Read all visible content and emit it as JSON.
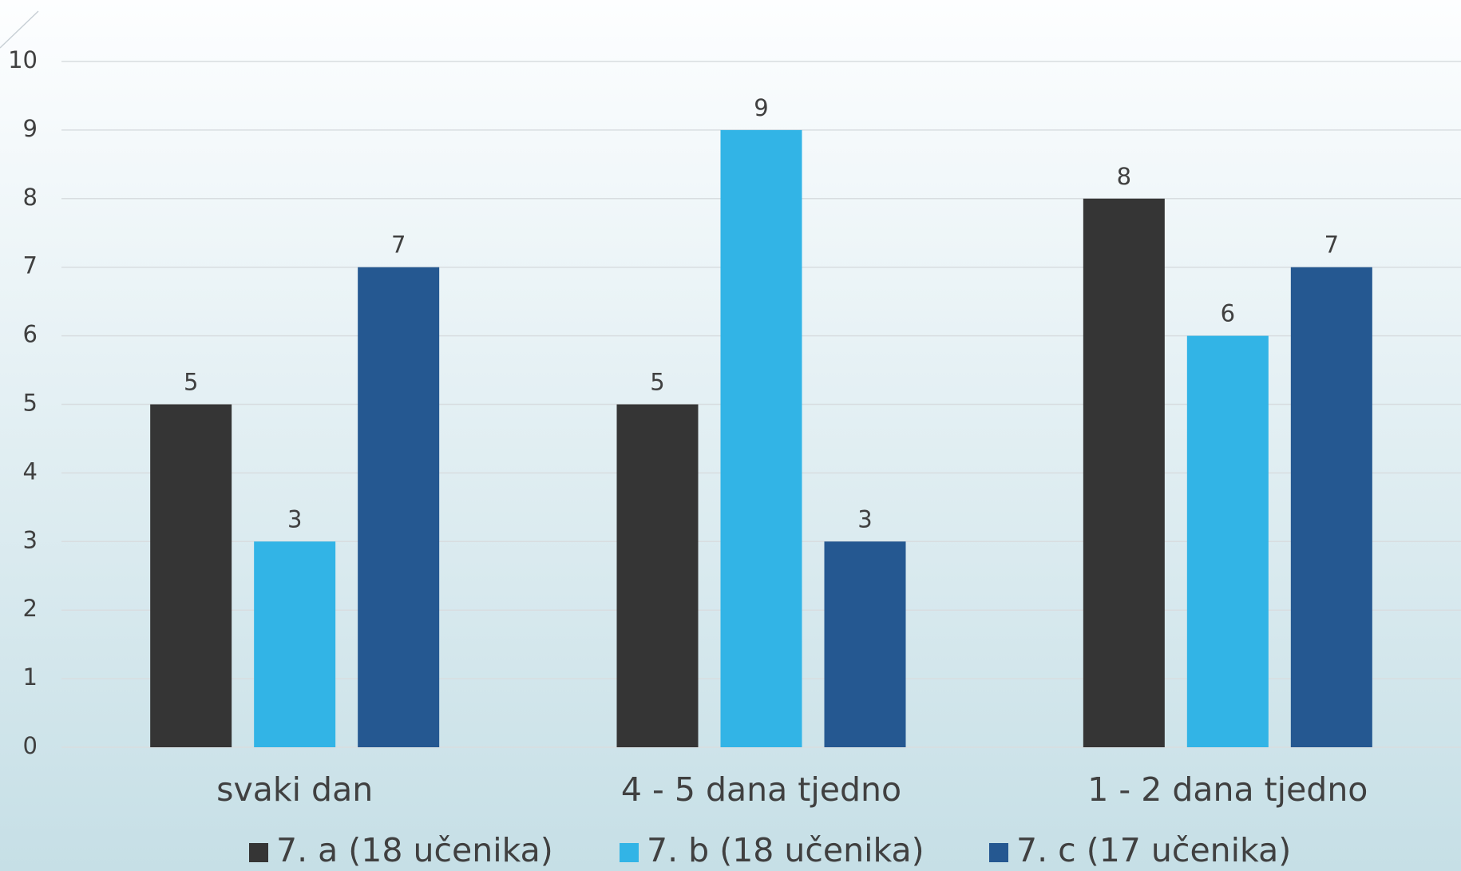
{
  "chart_data": {
    "type": "bar",
    "categories": [
      "svaki dan",
      "4 - 5 dana tjedno",
      "1 - 2 dana tjedno"
    ],
    "series": [
      {
        "name": "7. a (18 učenika)",
        "color": "#353535",
        "values": [
          5,
          5,
          8
        ]
      },
      {
        "name": "7. b (18 učenika)",
        "color": "#32b4e6",
        "values": [
          3,
          9,
          6
        ]
      },
      {
        "name": "7. c (17 učenika)",
        "color": "#255891",
        "values": [
          7,
          3,
          7
        ]
      }
    ],
    "ylim": [
      0,
      10
    ],
    "yticks": [
      0,
      1,
      2,
      3,
      4,
      5,
      6,
      7,
      8,
      9,
      10
    ],
    "grid": true,
    "legend": "bottom"
  }
}
